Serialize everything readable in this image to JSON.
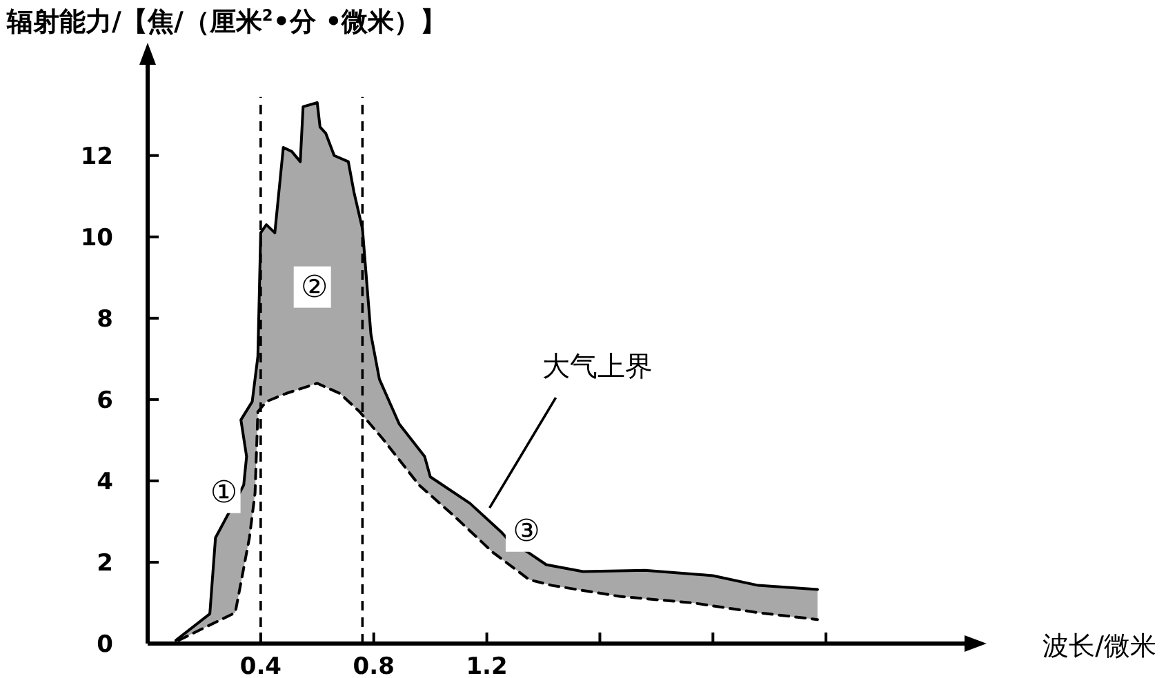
{
  "chart_data": {
    "type": "line",
    "ylabel": "辐射能力/【焦/（厘米$^{2}$•分 •微米）】",
    "xlabel": "波长/微米",
    "xlim": [
      0,
      2.9
    ],
    "ylim": [
      0,
      14.3
    ],
    "xticks": [
      0.4,
      0.8,
      1.2,
      {
        "value": 1.6,
        "label": null
      },
      {
        "value": 2.0,
        "label": null
      },
      {
        "value": 2.4,
        "label": null
      }
    ],
    "yticks": [
      0,
      2,
      4,
      6,
      8,
      10,
      12
    ],
    "series": [
      {
        "color": "#000000",
        "line_style": "solid",
        "x": [
          0.1,
          0.22,
          0.24,
          0.34,
          0.35,
          0.33,
          0.37,
          0.39,
          0.4,
          0.42,
          0.45,
          0.48,
          0.51,
          0.54,
          0.55,
          0.6,
          0.61,
          0.63,
          0.66,
          0.71,
          0.73,
          0.76,
          0.79,
          0.82,
          0.89,
          0.98,
          1.0,
          1.14,
          1.25,
          1.27,
          1.41,
          1.54,
          1.76,
          2.0,
          2.16,
          2.37
        ],
        "values": [
          0.08,
          0.73,
          2.6,
          3.9,
          4.6,
          5.5,
          5.95,
          7.06,
          10.1,
          10.3,
          10.1,
          12.2,
          12.1,
          11.85,
          13.2,
          13.3,
          12.7,
          12.55,
          12.0,
          11.85,
          11.1,
          10.2,
          7.6,
          6.5,
          5.4,
          4.6,
          4.1,
          3.45,
          2.75,
          2.6,
          1.94,
          1.77,
          1.8,
          1.67,
          1.43,
          1.33
        ]
      },
      {
        "color": "#000000",
        "line_style": "dashed",
        "x": [
          0.11,
          0.31,
          0.36,
          0.38,
          0.39,
          0.42,
          0.49,
          0.6,
          0.68,
          0.75,
          0.83,
          0.96,
          1.09,
          1.22,
          1.35,
          1.43,
          1.67,
          1.93,
          2.16,
          2.37
        ],
        "values": [
          0.08,
          0.76,
          2.6,
          3.7,
          5.7,
          5.95,
          6.15,
          6.4,
          6.15,
          5.7,
          5.05,
          3.9,
          3.1,
          2.25,
          1.57,
          1.43,
          1.16,
          1.0,
          0.76,
          0.59
        ]
      }
    ],
    "ref_lines": [
      {
        "axis": "x",
        "value": 0.4,
        "line_style": "dashed",
        "color": "#000000"
      },
      {
        "axis": "x",
        "value": 0.76,
        "line_style": "dashed",
        "color": "#000000"
      }
    ],
    "annotations": [
      {
        "text": "大气上界",
        "x": 1.2,
        "y": 3.2
      },
      {
        "text": "①",
        "x": 0.27,
        "y": 3.75
      },
      {
        "text": "②",
        "x": 0.59,
        "y": 8.8
      },
      {
        "text": "③",
        "x": 1.34,
        "y": 2.8
      }
    ]
  }
}
